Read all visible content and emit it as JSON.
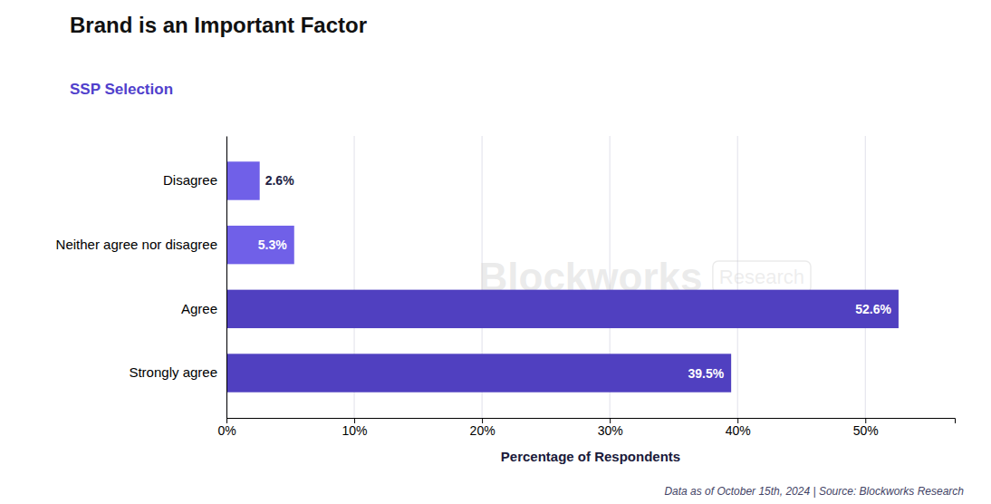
{
  "chart_data": {
    "type": "bar",
    "orientation": "horizontal",
    "title": "Brand is an Important Factor",
    "subtitle": "SSP Selection",
    "xlabel": "Percentage of Respondents",
    "footnote": "Data as of October 15th, 2024 | Source: Blockworks Research",
    "annotations": [
      "Blockworks",
      "Research"
    ],
    "categories": [
      "Strongly agree",
      "Agree",
      "Neither agree nor disagree",
      "Disagree"
    ],
    "values": [
      39.5,
      52.6,
      5.3,
      2.6
    ],
    "value_labels": [
      "39.5%",
      "52.6%",
      "5.3%",
      "2.6%"
    ],
    "data_labels": true,
    "colors": [
      "#5040C0",
      "#5040C0",
      "#7060E8",
      "#7060E8"
    ],
    "xlim": [
      0,
      57
    ],
    "xticks": [
      {
        "value": 0,
        "label": "0%"
      },
      {
        "value": 10,
        "label": "10%"
      },
      {
        "value": 20,
        "label": "20%"
      },
      {
        "value": 30,
        "label": "30%"
      },
      {
        "value": 40,
        "label": "40%"
      },
      {
        "value": 50,
        "label": "50%"
      }
    ],
    "grid": true
  }
}
